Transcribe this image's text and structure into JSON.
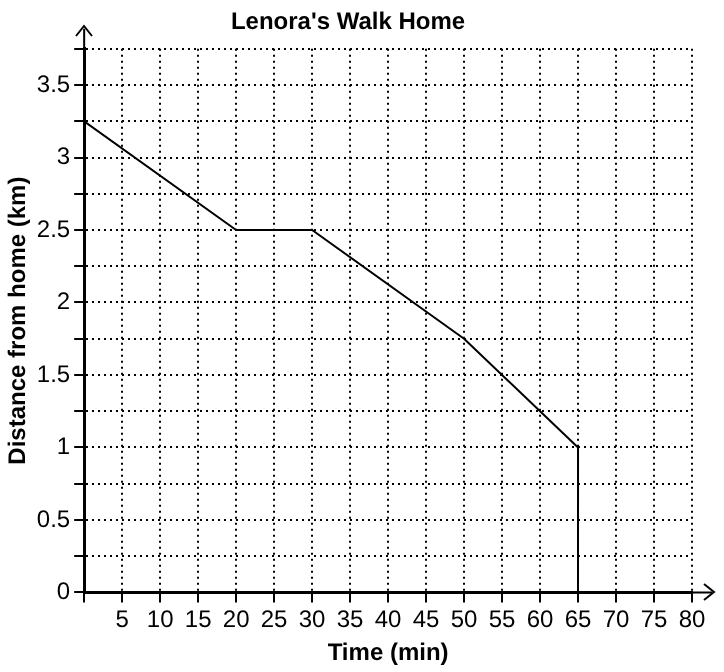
{
  "chart_data": {
    "type": "line",
    "title": "Lenora's Walk Home",
    "xlabel": "Time (min)",
    "ylabel": "Distance from home (km)",
    "x": [
      0,
      20,
      30,
      50,
      65,
      65
    ],
    "series": [
      {
        "color": "#000000",
        "values": [
          3.25,
          2.5,
          2.5,
          1.75,
          1,
          0
        ]
      }
    ],
    "xlim": [
      0,
      80
    ],
    "xticks": [
      {
        "value": 0,
        "label": null
      },
      5,
      10,
      15,
      20,
      25,
      30,
      35,
      40,
      45,
      50,
      55,
      60,
      65,
      70,
      75,
      80
    ],
    "ylim": [
      0,
      3.75
    ],
    "yticks": [
      0,
      {
        "value": 0.25,
        "label": null
      },
      0.5,
      {
        "value": 0.75,
        "label": null
      },
      1,
      {
        "value": 1.25,
        "label": null
      },
      1.5,
      {
        "value": 1.75,
        "label": null
      },
      2,
      {
        "value": 2.25,
        "label": null
      },
      2.5,
      {
        "value": 2.75,
        "label": null
      },
      3,
      {
        "value": 3.25,
        "label": null
      },
      3.5,
      {
        "value": 3.75,
        "label": null
      }
    ],
    "grid": true,
    "marker": "none",
    "line_style": "solid",
    "legend": false
  }
}
